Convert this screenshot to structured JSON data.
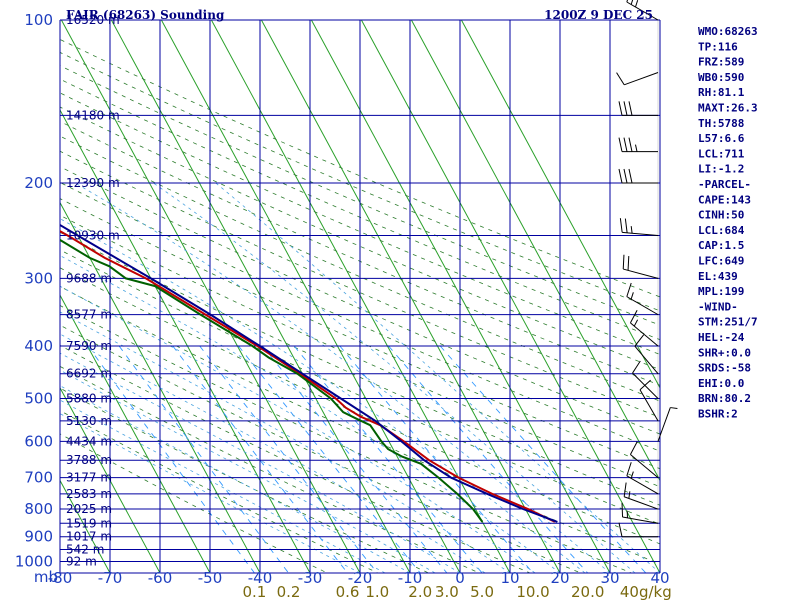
{
  "header": {
    "title": "FAIR (68263) Sounding",
    "datetime": "1200Z  9 DEC 25"
  },
  "stats": [
    "WMO:68263",
    "TP:116",
    "FRZ:589",
    "WB0:590",
    "RH:81.1",
    "MAXT:26.3",
    "TH:5788",
    "L57:6.6",
    "LCL:711",
    "LI:-1.2",
    "-PARCEL-",
    "CAPE:143",
    "CINH:50",
    "LCL:684",
    "CAP:1.5",
    "LFC:649",
    "EL:439",
    "MPL:199",
    "-WIND-",
    "STM:251/7",
    "HEL:-24",
    "SHR+:0.0",
    "SRDS:-58",
    "EHI:0.0",
    "BRN:80.2",
    "BSHR:2"
  ],
  "chart_data": {
    "type": "line",
    "title": "FAIR (68263) Sounding",
    "pressure_unit": "mb",
    "pressure_ticks": [
      100,
      200,
      300,
      400,
      500,
      600,
      700,
      800,
      900,
      1000
    ],
    "temperature_ticks": [
      -80,
      -70,
      -60,
      -50,
      -40,
      -30,
      -20,
      -10,
      0,
      10,
      20,
      30,
      40
    ],
    "temperature_labels": [
      "-80",
      "-70",
      "-60",
      "-50",
      "-40",
      "-30",
      "-20",
      "-10",
      "0",
      "10",
      "20",
      "30",
      "40"
    ],
    "mixing_ratio_labels": [
      "0.1",
      "0.2",
      "0.6",
      "1.0",
      "2.0",
      "3.0",
      "5.0",
      "10.0",
      "20.0",
      "40g/kg"
    ],
    "height_labels": [
      {
        "p": 100,
        "label": "16520 m"
      },
      {
        "p": 150,
        "label": "14180 m"
      },
      {
        "p": 200,
        "label": "12390 m"
      },
      {
        "p": 250,
        "label": "10930 m"
      },
      {
        "p": 300,
        "label": "9688 m"
      },
      {
        "p": 350,
        "label": "8577 m"
      },
      {
        "p": 400,
        "label": "7590 m"
      },
      {
        "p": 450,
        "label": "6692 m"
      },
      {
        "p": 500,
        "label": "5880 m"
      },
      {
        "p": 550,
        "label": "5130 m"
      },
      {
        "p": 600,
        "label": "4434 m"
      },
      {
        "p": 650,
        "label": "3788 m"
      },
      {
        "p": 700,
        "label": "3177 m"
      },
      {
        "p": 750,
        "label": "2583 m"
      },
      {
        "p": 800,
        "label": "2025 m"
      },
      {
        "p": 850,
        "label": "1519 m"
      },
      {
        "p": 900,
        "label": "1017 m"
      },
      {
        "p": 950,
        "label": "542 m"
      },
      {
        "p": 1000,
        "label": "92 m"
      }
    ],
    "series": [
      {
        "key": "temperature",
        "color": "#c00000",
        "points": [
          {
            "p": 845,
            "t": 24.5
          },
          {
            "p": 800,
            "t": 20.5
          },
          {
            "p": 750,
            "t": 15.0
          },
          {
            "p": 700,
            "t": 10.0
          },
          {
            "p": 650,
            "t": 6.0
          },
          {
            "p": 600,
            "t": 3.0
          },
          {
            "p": 560,
            "t": 0.0
          },
          {
            "p": 540,
            "t": -3.0
          },
          {
            "p": 520,
            "t": -5.0
          },
          {
            "p": 500,
            "t": -6.0
          },
          {
            "p": 450,
            "t": -10.5
          },
          {
            "p": 400,
            "t": -16.0
          },
          {
            "p": 350,
            "t": -23.0
          },
          {
            "p": 300,
            "t": -31.0
          },
          {
            "p": 275,
            "t": -37.0
          },
          {
            "p": 250,
            "t": -42.0
          },
          {
            "p": 200,
            "t": -55.0
          },
          {
            "p": 160,
            "t": -64.0
          },
          {
            "p": 148,
            "t": -67.0
          },
          {
            "p": 140,
            "t": -67.0
          },
          {
            "p": 135,
            "t": -68.0
          },
          {
            "p": 130,
            "t": -68.0
          },
          {
            "p": 118,
            "t": -73.0
          },
          {
            "p": 105,
            "t": -75.0
          },
          {
            "p": 100,
            "t": -71.0
          }
        ]
      },
      {
        "key": "dewpoint",
        "color": "#006000",
        "points": [
          {
            "p": 845,
            "t": 10.0
          },
          {
            "p": 800,
            "t": 9.5
          },
          {
            "p": 750,
            "t": 8.0
          },
          {
            "p": 700,
            "t": 6.0
          },
          {
            "p": 660,
            "t": 4.0
          },
          {
            "p": 640,
            "t": 1.0
          },
          {
            "p": 620,
            "t": -1.0
          },
          {
            "p": 600,
            "t": -1.5
          },
          {
            "p": 560,
            "t": -2.0
          },
          {
            "p": 545,
            "t": -4.0
          },
          {
            "p": 530,
            "t": -6.0
          },
          {
            "p": 500,
            "t": -7.0
          },
          {
            "p": 450,
            "t": -11.0
          },
          {
            "p": 420,
            "t": -15.0
          },
          {
            "p": 400,
            "t": -17.0
          },
          {
            "p": 350,
            "t": -24.0
          },
          {
            "p": 310,
            "t": -30.0
          },
          {
            "p": 300,
            "t": -35.0
          },
          {
            "p": 285,
            "t": -37.0
          },
          {
            "p": 275,
            "t": -40.0
          },
          {
            "p": 250,
            "t": -45.0
          },
          {
            "p": 200,
            "t": -57.0
          },
          {
            "p": 150,
            "t": -71.0
          },
          {
            "p": 130,
            "t": -76.0
          },
          {
            "p": 115,
            "t": -78.0
          },
          {
            "p": 105,
            "t": -80.0
          }
        ]
      },
      {
        "key": "parcel",
        "color": "#00008b",
        "points": [
          {
            "p": 845,
            "t": 25.0
          },
          {
            "p": 800,
            "t": 19.5
          },
          {
            "p": 750,
            "t": 14.0
          },
          {
            "p": 700,
            "t": 8.5
          },
          {
            "p": 650,
            "t": 5.0
          },
          {
            "p": 600,
            "t": 2.5
          },
          {
            "p": 550,
            "t": -0.5
          },
          {
            "p": 500,
            "t": -5.0
          },
          {
            "p": 450,
            "t": -10.0
          },
          {
            "p": 400,
            "t": -15.5
          },
          {
            "p": 350,
            "t": -22.0
          },
          {
            "p": 300,
            "t": -30.0
          },
          {
            "p": 250,
            "t": -40.0
          },
          {
            "p": 200,
            "t": -52.0
          },
          {
            "p": 150,
            "t": -68.0
          },
          {
            "p": 120,
            "t": -79.0
          }
        ]
      }
    ],
    "wind_barbs": [
      {
        "p": 100,
        "dir": 300,
        "kt": 25
      },
      {
        "p": 125,
        "dir": 250,
        "kt": 10
      },
      {
        "p": 150,
        "dir": 270,
        "kt": 30
      },
      {
        "p": 175,
        "dir": 270,
        "kt": 35
      },
      {
        "p": 200,
        "dir": 270,
        "kt": 30
      },
      {
        "p": 250,
        "dir": 275,
        "kt": 25
      },
      {
        "p": 300,
        "dir": 285,
        "kt": 20
      },
      {
        "p": 350,
        "dir": 300,
        "kt": 15
      },
      {
        "p": 400,
        "dir": 310,
        "kt": 15
      },
      {
        "p": 450,
        "dir": 320,
        "kt": 10
      },
      {
        "p": 500,
        "dir": 315,
        "kt": 10
      },
      {
        "p": 550,
        "dir": 330,
        "kt": 10
      },
      {
        "p": 600,
        "dir": 20,
        "kt": 5
      },
      {
        "p": 700,
        "dir": 310,
        "kt": 10
      },
      {
        "p": 750,
        "dir": 300,
        "kt": 15
      },
      {
        "p": 800,
        "dir": 290,
        "kt": 15
      },
      {
        "p": 850,
        "dir": 280,
        "kt": 15
      },
      {
        "p": 900,
        "dir": 270,
        "kt": 10
      }
    ],
    "grid": true
  }
}
